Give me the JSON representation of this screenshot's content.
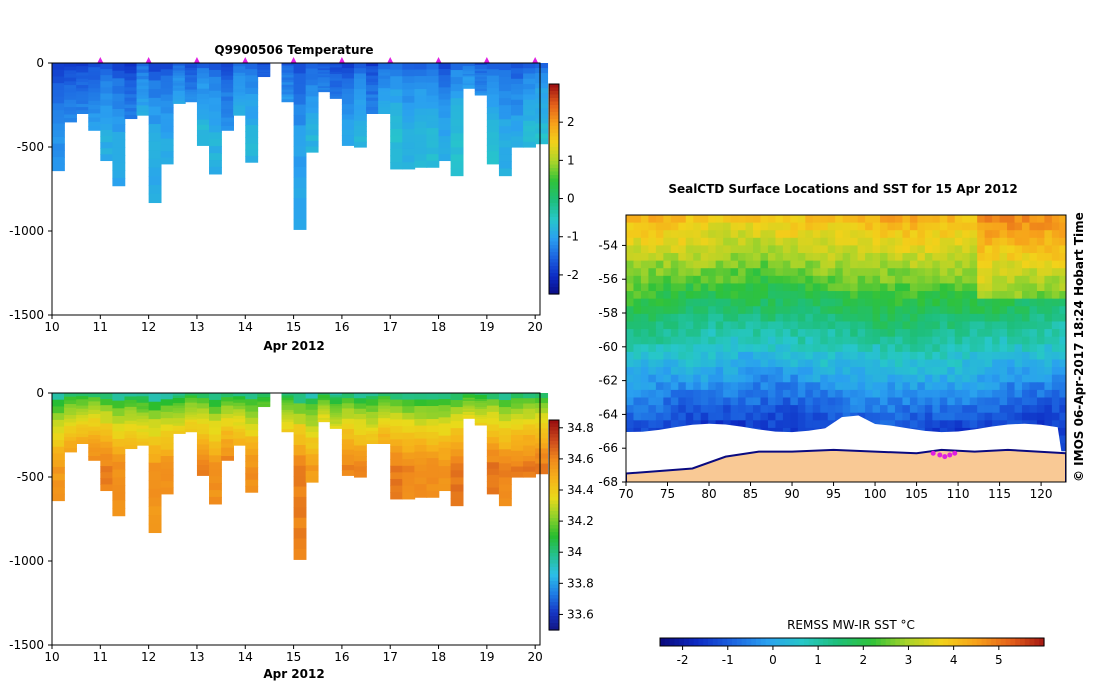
{
  "colors": {
    "temp_ramp": [
      "#0a0a80",
      "#0d2bc4",
      "#1c63e0",
      "#2aa0f0",
      "#27c7c9",
      "#1ebf7a",
      "#2fc23a",
      "#a8d42a",
      "#f2d21a",
      "#f7a11a",
      "#e4601a",
      "#a01212"
    ],
    "sal_ramp": [
      "#12127f",
      "#1636c4",
      "#1f7ee6",
      "#2cc0e8",
      "#25c08e",
      "#27bd2e",
      "#8ed12b",
      "#e9da1a",
      "#f6b21a",
      "#f08a1c",
      "#cc4a1c",
      "#9a1010"
    ],
    "land": "#f9c995",
    "ice": "#ffffff",
    "profile_marker": "#e020e0"
  },
  "chart_data": [
    {
      "id": "temperature_section",
      "type": "heatmap",
      "title": "Q9900506  Temperature",
      "xlabel": "Apr 2012",
      "ylabel": "",
      "xlim": [
        10,
        20.1
      ],
      "ylim": [
        -1500,
        0
      ],
      "x_ticks": [
        "10",
        "11",
        "12",
        "13",
        "14",
        "15",
        "16",
        "17",
        "18",
        "19",
        "20"
      ],
      "y_ticks": [
        "0",
        "-500",
        "-1000",
        "-1500"
      ],
      "colorbar": {
        "min": -2.5,
        "max": 3,
        "ticks": [
          "-2",
          "-1",
          "0",
          "1",
          "2"
        ]
      },
      "surface_profile_markers": [
        11,
        12,
        13,
        14,
        15,
        16,
        17,
        18,
        19,
        20
      ],
      "profiles_day": [
        10.0,
        10.25,
        10.5,
        10.75,
        11.0,
        11.25,
        11.5,
        11.75,
        12.0,
        12.25,
        12.5,
        12.75,
        13.0,
        13.25,
        13.5,
        13.75,
        14.0,
        14.25,
        14.5,
        14.75,
        15.0,
        15.25,
        15.5,
        15.75,
        16.0,
        16.25,
        16.5,
        16.75,
        17.0,
        17.25,
        17.5,
        17.75,
        18.0,
        18.25,
        18.5,
        18.75,
        19.0,
        19.25,
        19.5,
        19.75,
        20.0
      ],
      "profiles_max_depth": [
        640,
        350,
        300,
        400,
        580,
        730,
        330,
        310,
        830,
        600,
        240,
        230,
        490,
        660,
        400,
        310,
        590,
        80,
        0,
        230,
        990,
        530,
        170,
        210,
        490,
        500,
        300,
        300,
        630,
        630,
        620,
        620,
        580,
        670,
        150,
        190,
        600,
        670,
        500,
        500,
        480
      ],
      "surface_value": -1.7,
      "bottom_value": -0.9
    },
    {
      "id": "salinity_section",
      "type": "heatmap",
      "title": "",
      "xlabel": "Apr 2012",
      "ylabel": "",
      "xlim": [
        10,
        20.1
      ],
      "ylim": [
        -1500,
        0
      ],
      "x_ticks": [
        "10",
        "11",
        "12",
        "13",
        "14",
        "15",
        "16",
        "17",
        "18",
        "19",
        "20"
      ],
      "y_ticks": [
        "0",
        "-500",
        "-1000",
        "-1500"
      ],
      "colorbar": {
        "min": 33.5,
        "max": 34.85,
        "ticks": [
          "33.6",
          "33.8",
          "34",
          "34.2",
          "34.4",
          "34.6",
          "34.8"
        ]
      },
      "profiles_day": [
        10.0,
        10.25,
        10.5,
        10.75,
        11.0,
        11.25,
        11.5,
        11.75,
        12.0,
        12.25,
        12.5,
        12.75,
        13.0,
        13.25,
        13.5,
        13.75,
        14.0,
        14.25,
        14.5,
        14.75,
        15.0,
        15.25,
        15.5,
        15.75,
        16.0,
        16.25,
        16.5,
        16.75,
        17.0,
        17.25,
        17.5,
        17.75,
        18.0,
        18.25,
        18.5,
        18.75,
        19.0,
        19.25,
        19.5,
        19.75,
        20.0
      ],
      "profiles_max_depth": [
        640,
        350,
        300,
        400,
        580,
        730,
        330,
        310,
        830,
        600,
        240,
        230,
        490,
        660,
        400,
        310,
        590,
        80,
        0,
        230,
        990,
        530,
        170,
        210,
        490,
        500,
        300,
        300,
        630,
        630,
        620,
        620,
        580,
        670,
        150,
        190,
        600,
        670,
        500,
        500,
        480
      ],
      "surface_value": 34.0,
      "bottom_value": 34.6
    },
    {
      "id": "sst_map",
      "type": "heatmap",
      "title": "SealCTD Surface Locations and SST for 15 Apr 2012",
      "xlabel": "",
      "ylabel": "",
      "xlim": [
        70,
        123
      ],
      "ylim": [
        -68,
        -52.2
      ],
      "x_ticks": [
        "70",
        "75",
        "80",
        "85",
        "90",
        "95",
        "100",
        "105",
        "110",
        "115",
        "120"
      ],
      "y_ticks": [
        "-54",
        "-56",
        "-58",
        "-60",
        "-62",
        "-64",
        "-66",
        "-68"
      ],
      "colorbar": {
        "min": -2.5,
        "max": 6,
        "ticks": [
          "-2",
          "-1",
          "0",
          "1",
          "2",
          "3",
          "4",
          "5"
        ],
        "label": "REMSS MW-IR SST °C"
      },
      "ice_edge_lat": -64.8,
      "coast_lat": [
        -67.5,
        -67.2,
        -66.5,
        -66.2,
        -66.2,
        -66.1,
        -66.2,
        -66.3,
        -66.1,
        -66.2,
        -66.1,
        -66.3
      ],
      "coast_lon": [
        70,
        78,
        82,
        86,
        90,
        95,
        100,
        105,
        108,
        112,
        116,
        123
      ],
      "seal_track": {
        "lon": [
          107.0,
          107.8,
          108.4,
          109.0,
          109.6
        ],
        "lat": [
          -66.3,
          -66.4,
          -66.5,
          -66.4,
          -66.3
        ]
      },
      "sst_north_value": 4.0,
      "sst_south_value": -1.5
    }
  ],
  "credit": "©  IMOS 06-Apr-2017 18:24 Hobart Time"
}
